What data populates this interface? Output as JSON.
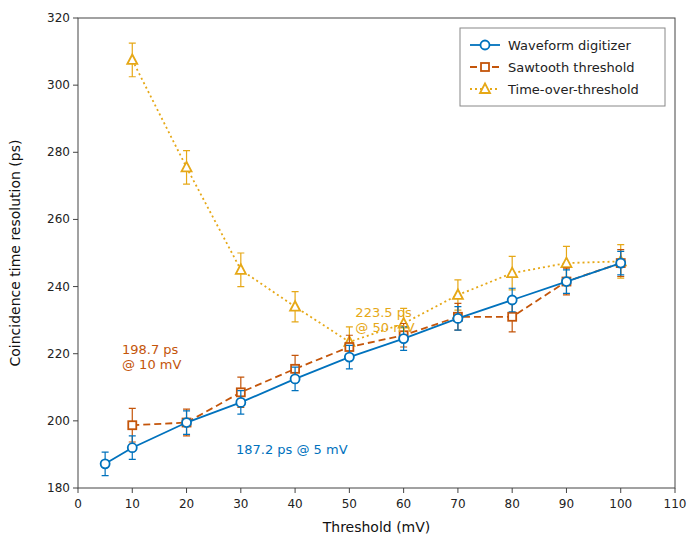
{
  "chart_data": {
    "type": "line",
    "x": [
      5,
      10,
      20,
      30,
      40,
      50,
      60,
      70,
      80,
      90,
      100
    ],
    "series": [
      {
        "name": "Waveform digitizer",
        "color": "#0072bd",
        "marker": "circle",
        "line_style": "solid",
        "values": [
          187.2,
          192.0,
          199.5,
          205.5,
          212.5,
          219.0,
          224.5,
          230.5,
          236.0,
          241.5,
          247.0
        ],
        "errors": [
          3.5,
          3.5,
          3.5,
          3.5,
          3.5,
          3.5,
          3.5,
          3.5,
          3.5,
          3.5,
          3.5
        ]
      },
      {
        "name": "Sawtooth threshold",
        "color": "#c4550a",
        "marker": "square",
        "line_style": "dashed",
        "values": [
          null,
          198.7,
          199.5,
          208.5,
          215.5,
          222.0,
          225.5,
          231.0,
          231.0,
          241.5,
          247.0
        ],
        "errors": [
          null,
          5.0,
          4.0,
          4.5,
          4.0,
          3.5,
          3.5,
          4.0,
          4.5,
          4.0,
          4.0
        ]
      },
      {
        "name": "Time-over-threshold",
        "color": "#e6a817",
        "marker": "triangle",
        "line_style": "dotted",
        "values": [
          null,
          307.5,
          275.5,
          245.0,
          234.0,
          223.5,
          229.0,
          237.5,
          244.0,
          247.0,
          247.5
        ],
        "errors": [
          null,
          5.0,
          5.0,
          5.0,
          4.5,
          4.5,
          4.5,
          4.5,
          5.0,
          5.0,
          5.0
        ]
      }
    ],
    "annotations": [
      {
        "text": "187.2 ps @ 5 mV",
        "x": 28,
        "y": 188.5,
        "color": "#0072bd"
      },
      {
        "text": "198.7 ps\n@ 10 mV",
        "x": 7,
        "y": 224,
        "color": "#c4550a"
      },
      {
        "text": "223.5 ps\n@ 50 mV",
        "x": 50,
        "y": 235,
        "color": "#e6a817"
      }
    ],
    "xlabel": "Threshold (mV)",
    "ylabel": "Coincidence time resolution (ps)",
    "xlim": [
      0,
      110
    ],
    "ylim": [
      180,
      320
    ],
    "xticks": [
      0,
      10,
      20,
      30,
      40,
      50,
      60,
      70,
      80,
      90,
      100,
      110
    ],
    "yticks": [
      180,
      200,
      220,
      240,
      260,
      280,
      300,
      320
    ],
    "grid": false,
    "legend": "upper right"
  }
}
